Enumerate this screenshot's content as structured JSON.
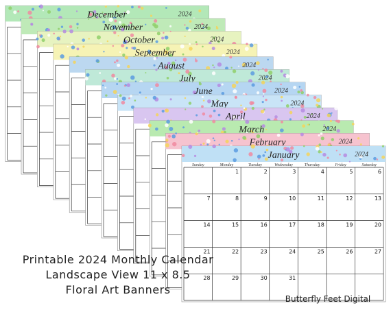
{
  "months": [
    {
      "month": "January",
      "year": "2024"
    },
    {
      "month": "February",
      "year": "2024"
    },
    {
      "month": "March",
      "year": "2024"
    },
    {
      "month": "April",
      "year": "2024"
    },
    {
      "month": "May",
      "year": "2024"
    },
    {
      "month": "June",
      "year": "2024"
    },
    {
      "month": "July",
      "year": "2024"
    },
    {
      "month": "August",
      "year": "2024"
    },
    {
      "month": "September",
      "year": "2024"
    },
    {
      "month": "October",
      "year": "2024"
    },
    {
      "month": "November",
      "year": "2024"
    },
    {
      "month": "December",
      "year": "2024"
    }
  ],
  "calendar": {
    "weekdays": [
      "Sunday",
      "Monday",
      "Tuesday",
      "Wednesday",
      "Thursday",
      "Friday",
      "Saturday"
    ],
    "weeks": [
      [
        null,
        1,
        2,
        3,
        4,
        5,
        6
      ],
      [
        7,
        8,
        9,
        10,
        11,
        12,
        13
      ],
      [
        14,
        15,
        16,
        17,
        18,
        19,
        20
      ],
      [
        21,
        22,
        23,
        24,
        25,
        26,
        27
      ],
      [
        28,
        29,
        30,
        31,
        null,
        null,
        null
      ]
    ]
  },
  "caption": {
    "lines": [
      "Printable 2024 Monthly Calendar",
      "Landscape View 11 x 8.5",
      "Floral Art Banners"
    ],
    "brand": "Butterfly Feet Digital"
  }
}
